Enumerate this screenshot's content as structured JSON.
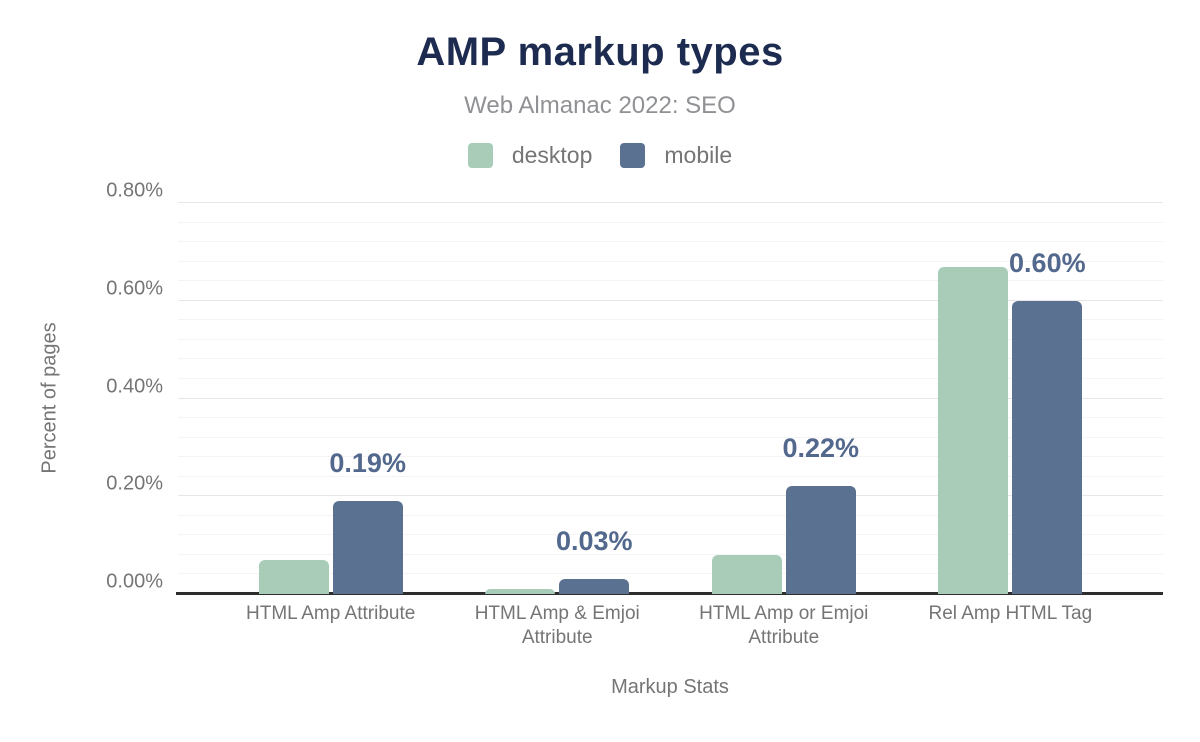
{
  "chart_data": {
    "type": "bar",
    "title": "AMP markup types",
    "subtitle": "Web Almanac 2022: SEO",
    "xlabel": "Markup Stats",
    "ylabel": "Percent of pages",
    "categories": [
      "HTML Amp Attribute",
      "HTML Amp & Emjoi Attribute",
      "HTML Amp or Emjoi Attribute",
      "Rel Amp HTML Tag"
    ],
    "series": [
      {
        "name": "desktop",
        "color": "#a9ccb8",
        "values": [
          0.07,
          0.01,
          0.08,
          0.67
        ],
        "data_labels": [
          "",
          "",
          "",
          ""
        ]
      },
      {
        "name": "mobile",
        "color": "#5b7191",
        "values": [
          0.19,
          0.03,
          0.22,
          0.6
        ],
        "data_labels": [
          "0.19%",
          "0.03%",
          "0.22%",
          "0.60%"
        ]
      }
    ],
    "ylim": [
      0,
      0.8
    ],
    "y_ticks": [
      {
        "value": 0.0,
        "label": "0.00%"
      },
      {
        "value": 0.2,
        "label": "0.20%"
      },
      {
        "value": 0.4,
        "label": "0.40%"
      },
      {
        "value": 0.6,
        "label": "0.60%"
      },
      {
        "value": 0.8,
        "label": "0.80%"
      }
    ],
    "minor_tick_step": 0.04,
    "grid": true,
    "legend_position": "top",
    "colors": {
      "title": "#1c2b4f",
      "subtitle": "#8f9194",
      "axis_text": "#757575",
      "data_label": "#52688c",
      "axis_line": "#2d2d2d",
      "gridline_major": "#e6e6e6",
      "gridline_minor": "#f4f4f4"
    }
  }
}
